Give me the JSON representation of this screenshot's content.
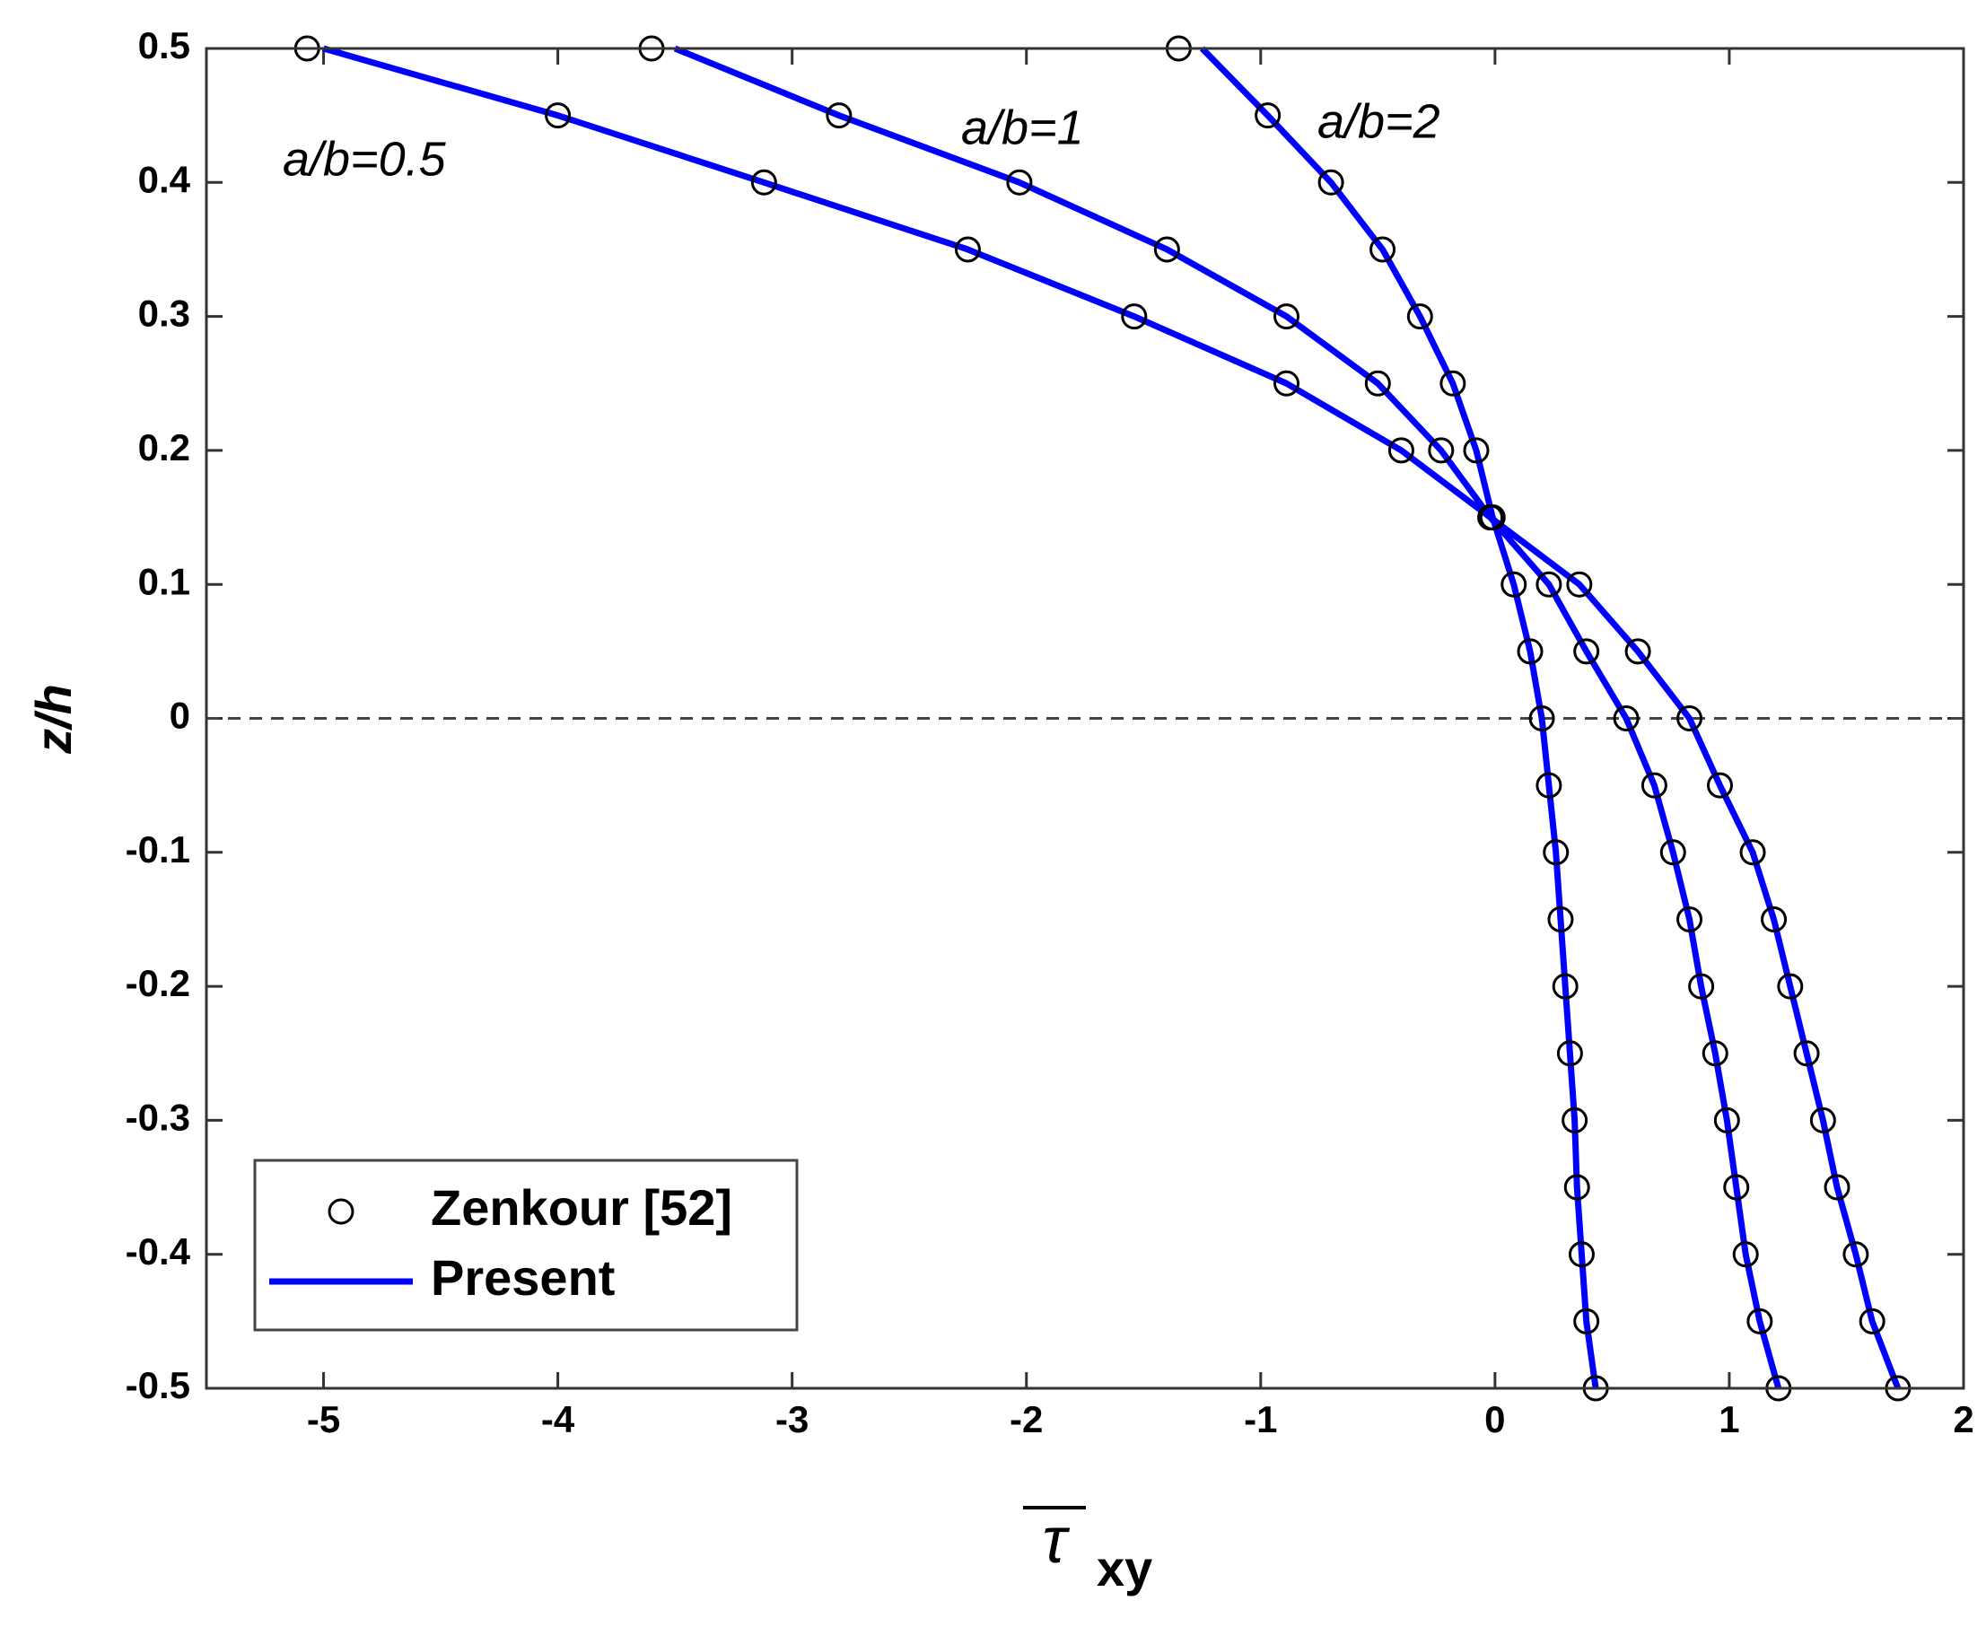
{
  "chart_data": {
    "type": "line",
    "xlabel": {
      "symbol": "τ",
      "subscript": "xy"
    },
    "ylabel": "z/h",
    "xlim": [
      -5.5,
      2
    ],
    "ylim": [
      -0.5,
      0.5
    ],
    "xticks": [
      -5,
      -4,
      -3,
      -2,
      -1,
      0,
      1,
      2
    ],
    "yticks": [
      0.5,
      0.4,
      0.3,
      0.2,
      0.1,
      0,
      -0.1,
      -0.2,
      -0.3,
      -0.4,
      -0.5
    ],
    "reference_line": {
      "y": 0,
      "style": "dashed"
    },
    "z": [
      0.5,
      0.45,
      0.4,
      0.35,
      0.3,
      0.25,
      0.2,
      0.15,
      0.1,
      0.05,
      0,
      -0.05,
      -0.1,
      -0.15,
      -0.2,
      -0.25,
      -0.3,
      -0.35,
      -0.4,
      -0.45,
      -0.5
    ],
    "annotations": [
      "a/b=0.5",
      "a/b=1",
      "a/b=2"
    ],
    "series": [
      {
        "name": "Zenkour [52]",
        "marker": "circle",
        "color": "#000000",
        "curves": [
          [
            -5.07,
            -4.0,
            -3.12,
            -2.25,
            -1.54,
            -0.89,
            -0.4,
            -0.02,
            0.36,
            0.61,
            0.83,
            0.96,
            1.1,
            1.19,
            1.26,
            1.33,
            1.4,
            1.46,
            1.54,
            1.61,
            1.72
          ],
          [
            -3.6,
            -2.8,
            -2.03,
            -1.4,
            -0.89,
            -0.5,
            -0.23,
            -0.02,
            0.23,
            0.39,
            0.56,
            0.68,
            0.76,
            0.83,
            0.88,
            0.94,
            0.99,
            1.03,
            1.07,
            1.13,
            1.21
          ],
          [
            -1.35,
            -0.97,
            -0.7,
            -0.48,
            -0.32,
            -0.18,
            -0.08,
            -0.01,
            0.08,
            0.15,
            0.2,
            0.23,
            0.26,
            0.28,
            0.3,
            0.32,
            0.34,
            0.35,
            0.37,
            0.39,
            0.43
          ]
        ]
      },
      {
        "name": "Present",
        "marker": "line",
        "color": "#0000ff",
        "curves": [
          [
            -5.0,
            -4.0,
            -3.12,
            -2.25,
            -1.54,
            -0.89,
            -0.4,
            -0.02,
            0.36,
            0.61,
            0.83,
            0.96,
            1.1,
            1.19,
            1.26,
            1.33,
            1.4,
            1.46,
            1.54,
            1.61,
            1.72
          ],
          [
            -3.5,
            -2.8,
            -2.03,
            -1.4,
            -0.89,
            -0.5,
            -0.23,
            -0.02,
            0.23,
            0.39,
            0.56,
            0.68,
            0.76,
            0.83,
            0.88,
            0.94,
            0.99,
            1.03,
            1.07,
            1.13,
            1.21
          ],
          [
            -1.25,
            -0.97,
            -0.7,
            -0.48,
            -0.32,
            -0.18,
            -0.08,
            -0.01,
            0.08,
            0.15,
            0.2,
            0.23,
            0.26,
            0.28,
            0.3,
            0.32,
            0.34,
            0.35,
            0.37,
            0.39,
            0.43
          ]
        ]
      }
    ]
  }
}
